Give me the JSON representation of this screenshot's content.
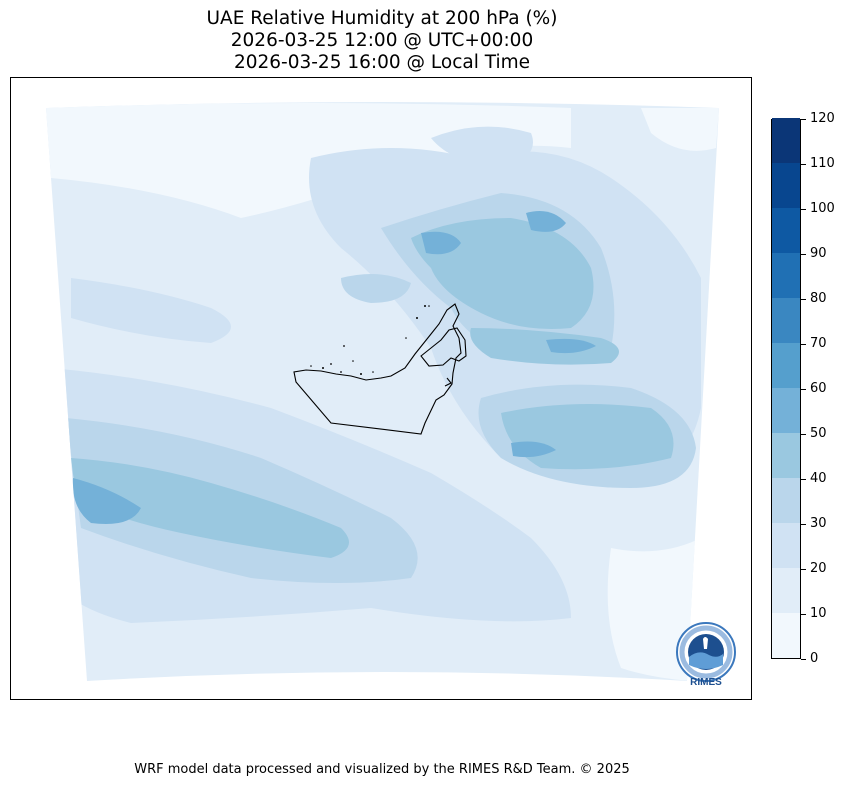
{
  "title": {
    "line1": "UAE Relative Humidity at 200 hPa (%)",
    "line2": "2026-03-25 12:00 @ UTC+00:00",
    "line3": "2026-03-25 16:00 @ Local Time"
  },
  "colorbar": {
    "levels": [
      0,
      10,
      20,
      30,
      40,
      50,
      60,
      70,
      80,
      90,
      100,
      110,
      120
    ],
    "tick_labels": [
      "0",
      "10",
      "20",
      "30",
      "40",
      "50",
      "60",
      "70",
      "80",
      "90",
      "100",
      "110",
      "120"
    ],
    "colors": [
      "#f2f8fd",
      "#e1edf8",
      "#d0e2f3",
      "#bad6eb",
      "#9ac8e0",
      "#74b1d8",
      "#559fcd",
      "#3a87c1",
      "#2070b4",
      "#0e59a3",
      "#08468f",
      "#0b3677"
    ]
  },
  "logo": {
    "text": "RIMES",
    "ring_text": "Regional Integrated Multi-Hazard Early Warning System",
    "colors": {
      "ring": "#3b78bd",
      "center": "#1d4f8f",
      "text": "#1d4f8f"
    }
  },
  "map": {
    "region": "UAE",
    "variable": "Relative Humidity",
    "level": "200 hPa",
    "palette": "Blues",
    "border_color": "#000000"
  },
  "footer": {
    "credit": "WRF model data processed and visualized by the RIMES R&D Team. © 2025"
  }
}
